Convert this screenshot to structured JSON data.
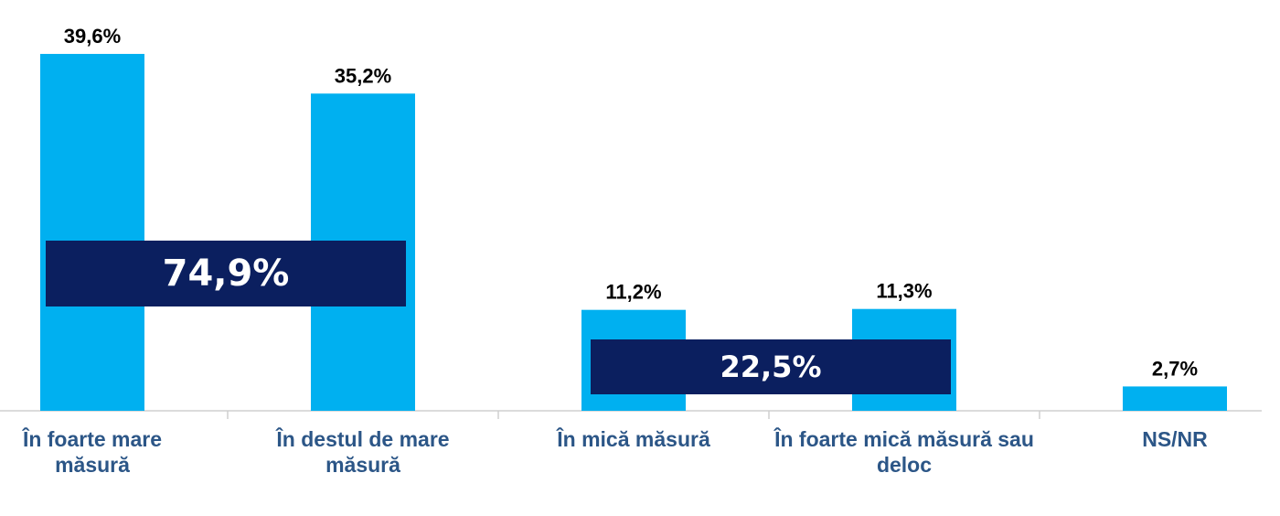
{
  "chart_data": {
    "type": "bar",
    "categories": [
      "În foarte mare măsură",
      "În destul de mare măsură",
      "În mică măsură",
      "În foarte mică măsură sau deloc",
      "NS/NR"
    ],
    "values": [
      39.6,
      35.2,
      11.2,
      11.3,
      2.7
    ],
    "value_labels": [
      "39,6%",
      "35,2%",
      "11,2%",
      "11,3%",
      "2,7%"
    ],
    "color": "#00b0f0",
    "annotations": [
      "74,9%",
      "22,5%"
    ]
  }
}
